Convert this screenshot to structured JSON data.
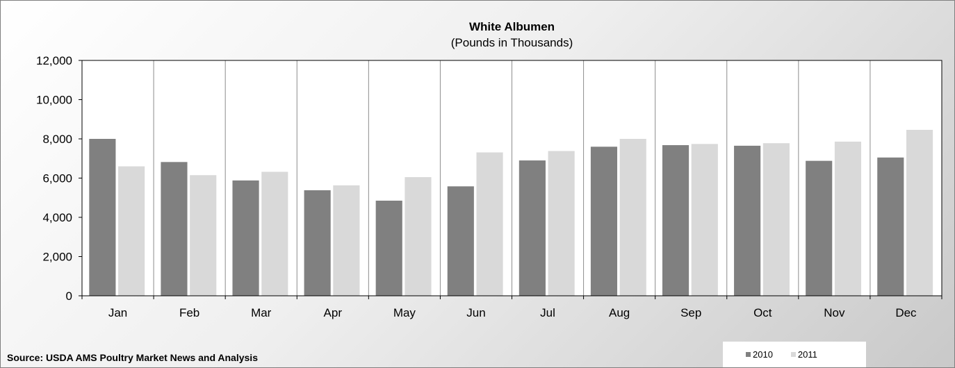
{
  "chart_data": {
    "type": "bar",
    "title": "White Albumen",
    "subtitle": "(Pounds in Thousands)",
    "categories": [
      "Jan",
      "Feb",
      "Mar",
      "Apr",
      "May",
      "Jun",
      "Jul",
      "Aug",
      "Sep",
      "Oct",
      "Nov",
      "Dec"
    ],
    "series": [
      {
        "name": "2010",
        "color": "#808080",
        "values": [
          8000,
          6820,
          5880,
          5380,
          4850,
          5580,
          6900,
          7600,
          7680,
          7650,
          6880,
          7050
        ]
      },
      {
        "name": "2011",
        "color": "#d9d9d9",
        "values": [
          6600,
          6150,
          6320,
          5630,
          6050,
          7310,
          7380,
          8000,
          7740,
          7780,
          7860,
          8460
        ]
      }
    ],
    "ylim": [
      0,
      12000
    ],
    "yticks": [
      0,
      2000,
      4000,
      6000,
      8000,
      10000,
      12000
    ],
    "ytick_labels": [
      "0",
      "2,000",
      "4,000",
      "6,000",
      "8,000",
      "10,000",
      "12,000"
    ],
    "grid": "vertical",
    "legend_position": "bottom-right"
  },
  "source": "Source: USDA AMS Poultry Market News and Analysis"
}
